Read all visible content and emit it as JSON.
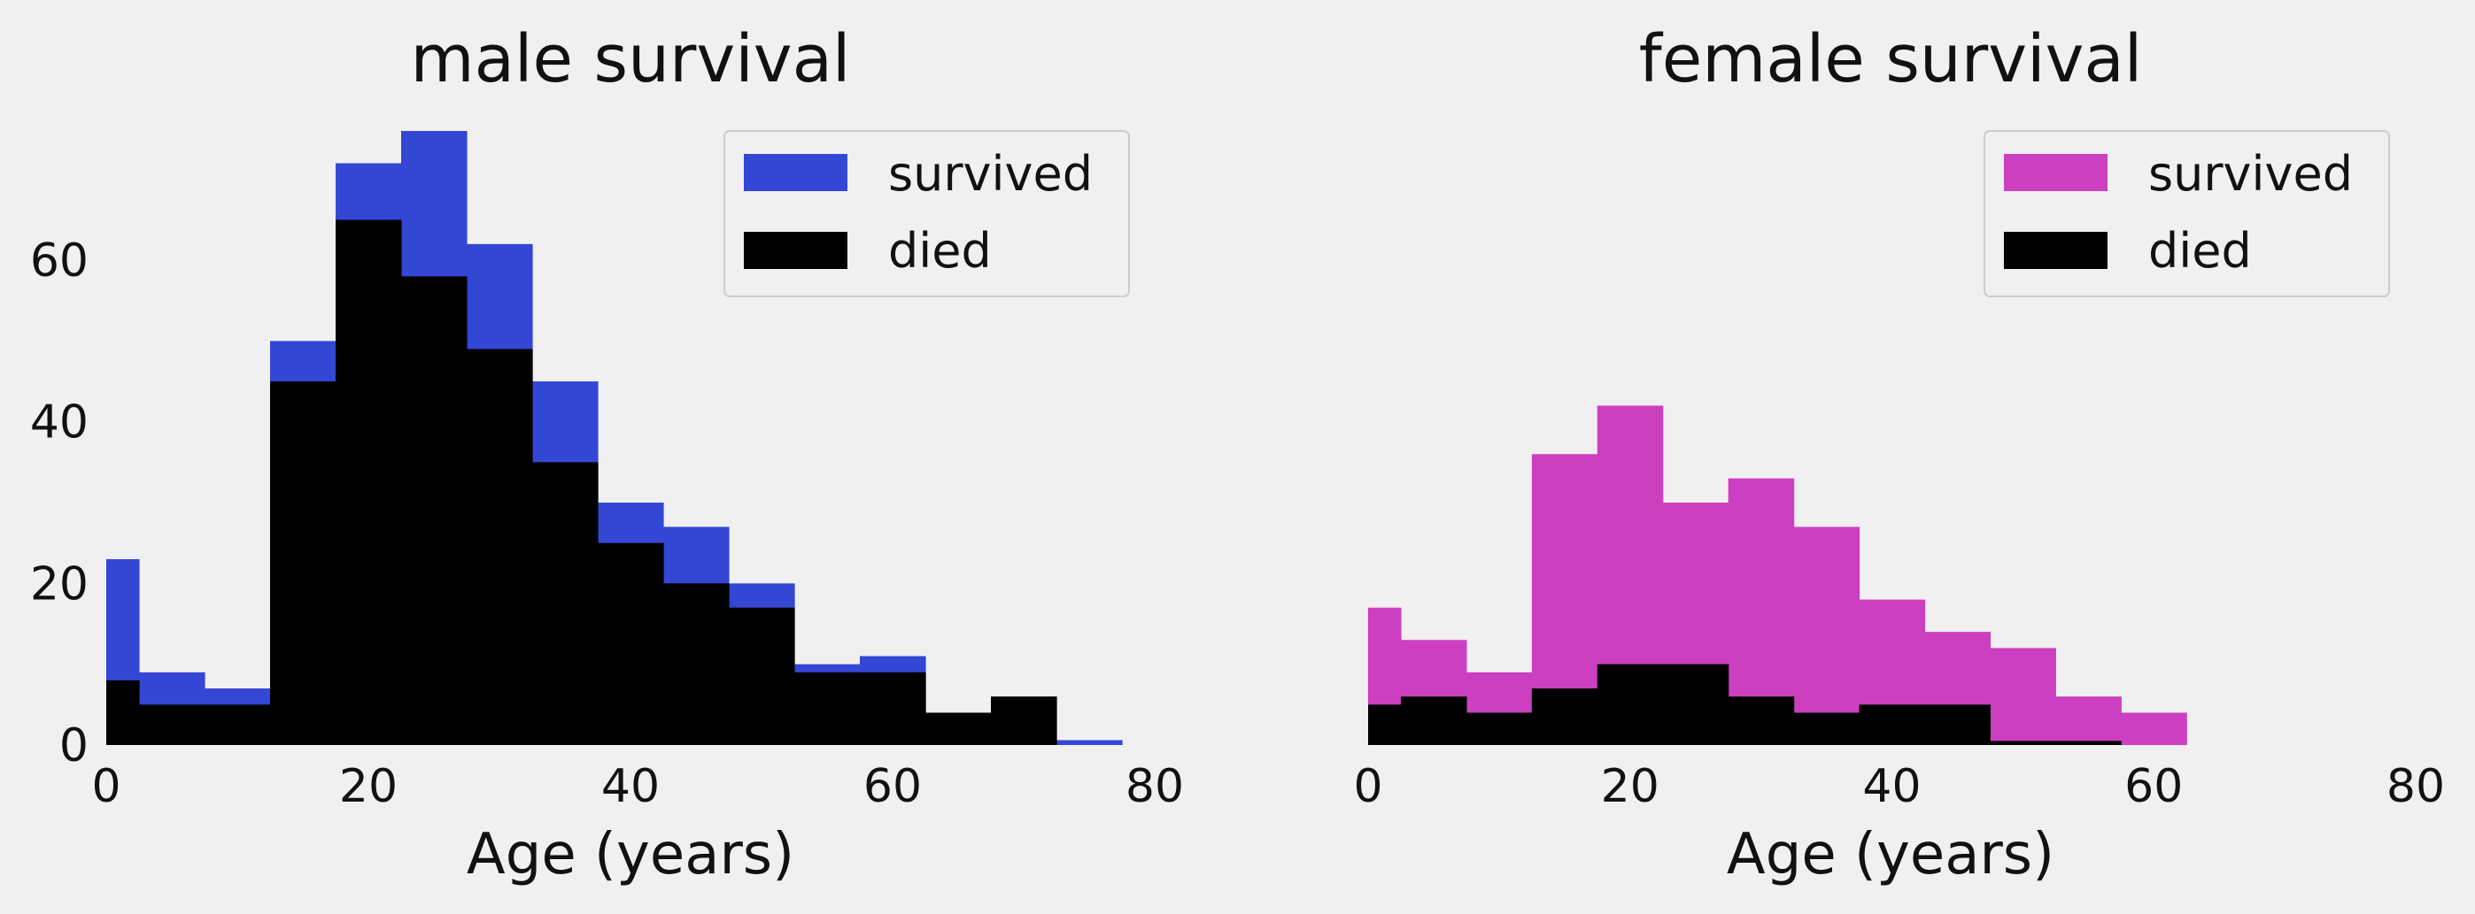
{
  "chart_data": [
    {
      "type": "bar",
      "title": "male survival",
      "xlabel": "Age (years)",
      "ylabel": "",
      "xlim": [
        0,
        80
      ],
      "ylim": [
        0,
        76
      ],
      "xticks": [
        "0",
        "20",
        "40",
        "60",
        "80"
      ],
      "yticks": [
        "0",
        "20",
        "40",
        "60"
      ],
      "grid": false,
      "legend_position": "top-right",
      "bin_edges": [
        0,
        2.5,
        7.5,
        12.5,
        17.5,
        22.5,
        27.5,
        32.5,
        37.5,
        42.5,
        47.5,
        52.5,
        57.5,
        62.5,
        67.5,
        72.5,
        77.5
      ],
      "series": [
        {
          "name": "survived",
          "color": "#3446d4",
          "values": [
            23,
            9,
            7,
            50,
            72,
            76,
            62,
            45,
            30,
            27,
            20,
            10,
            11,
            0,
            0,
            0.6
          ]
        },
        {
          "name": "died",
          "color": "#000000",
          "values": [
            8,
            5,
            5,
            45,
            65,
            58,
            49,
            35,
            25,
            20,
            17,
            9,
            9,
            4,
            6,
            0
          ]
        }
      ]
    },
    {
      "type": "bar",
      "title": "female survival",
      "xlabel": "Age (years)",
      "ylabel": "",
      "xlim": [
        0,
        80
      ],
      "ylim": [
        0,
        76
      ],
      "xticks": [
        "0",
        "20",
        "40",
        "60",
        "80"
      ],
      "yticks": [],
      "grid": false,
      "legend_position": "top-right",
      "bin_edges": [
        0,
        2.5,
        7.5,
        12.5,
        17.5,
        22.5,
        27.5,
        32.5,
        37.5,
        42.5,
        47.5,
        52.5,
        57.5,
        62.5
      ],
      "series": [
        {
          "name": "survived",
          "color": "#cc3fc0",
          "values": [
            17,
            13,
            9,
            36,
            42,
            30,
            33,
            27,
            18,
            14,
            12,
            6,
            4
          ]
        },
        {
          "name": "died",
          "color": "#000000",
          "values": [
            5,
            6,
            4,
            7,
            10,
            10,
            6,
            4,
            5,
            5,
            0.5,
            0.5,
            0
          ]
        }
      ]
    }
  ]
}
